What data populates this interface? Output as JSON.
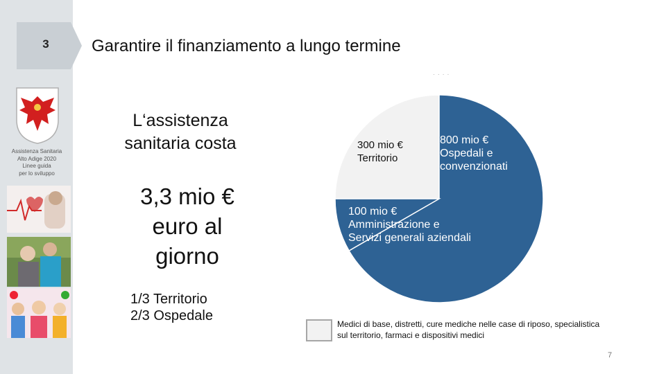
{
  "slide": {
    "number": "3",
    "title": "Garantire il finanziamento a lungo termine",
    "page_number": "7",
    "tiny_note": "· · · ·"
  },
  "sidebar": {
    "org_line1": "Assistenza Sanitaria",
    "org_line2": "Alto Adige 2020",
    "org_line3": "Linee guida",
    "org_line4": "per lo sviluppo"
  },
  "main": {
    "subtitle_line1": "L‘assistenza",
    "subtitle_line2": "sanitaria costa",
    "amount_line1": "3,3 mio €",
    "amount_line2": "euro al",
    "amount_line3": "giorno",
    "split_line1": "1/3 Territorio",
    "split_line2": "2/3 Ospedale"
  },
  "chart_data": {
    "type": "pie",
    "slices": [
      {
        "value": 300,
        "label_line1": "300 mio €",
        "label_line2": "Territorio",
        "color": "#f2f2f2"
      },
      {
        "value": 800,
        "label_line1": "800 mio €",
        "label_line2": "Ospedali e",
        "label_line3": "convenzionati",
        "color": "#2e6294"
      },
      {
        "value": 100,
        "label_line1": "100 mio €",
        "label_line2": "Amministrazione e",
        "label_line3": "Servizi generali aziendali",
        "color": "#2e6294"
      }
    ],
    "legend": {
      "swatch_color": "#f2f2f2",
      "text": "Medici di base, distretti, cure mediche nelle case di riposo, specialistica sul territorio, farmaci e dispositivi medici"
    }
  }
}
